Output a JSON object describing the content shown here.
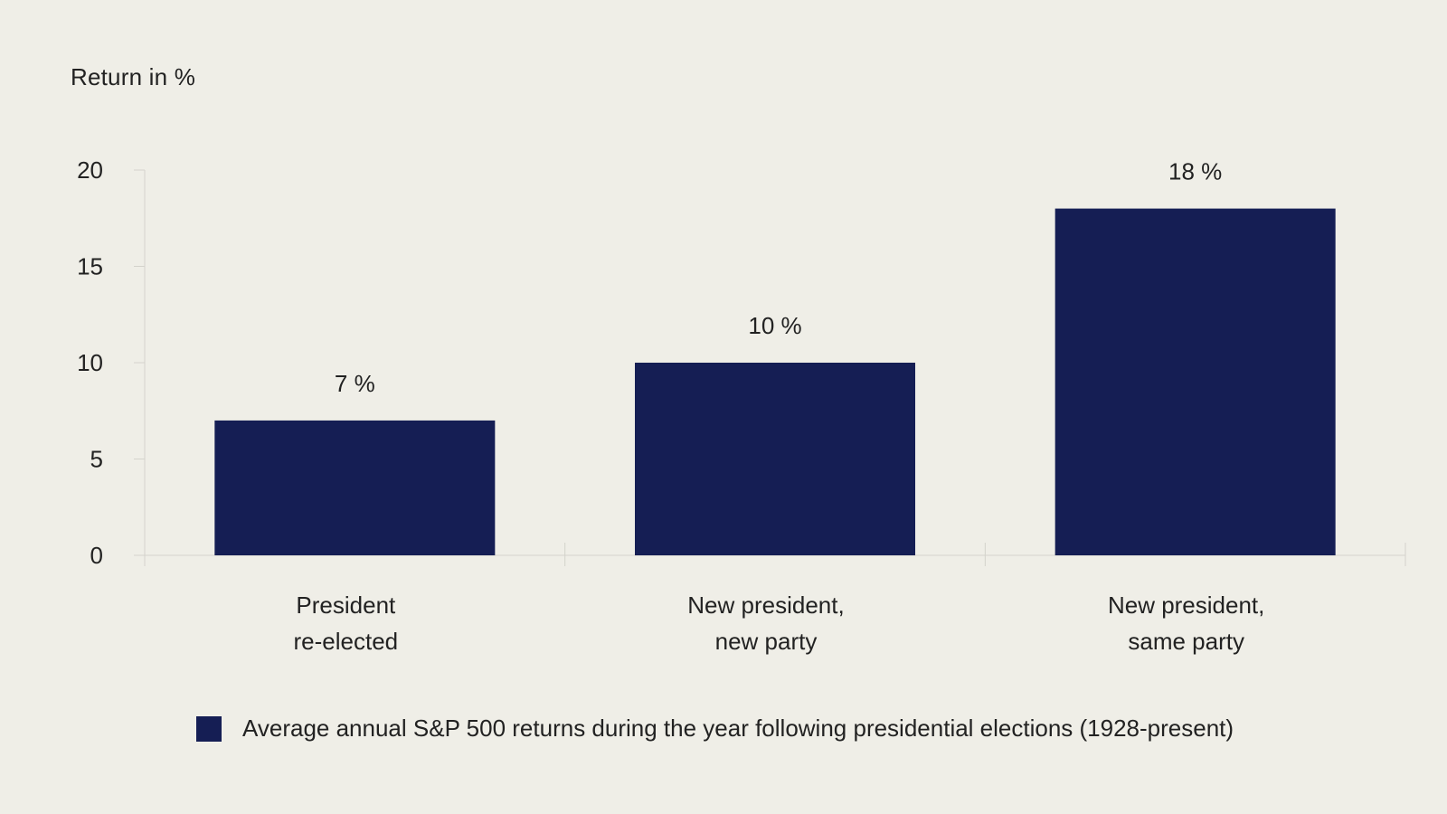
{
  "chart_data": {
    "type": "bar",
    "ylabel": "Return in %",
    "ylim": [
      0,
      20
    ],
    "yticks": [
      0,
      5,
      10,
      15,
      20
    ],
    "categories": [
      [
        "President",
        "re-elected"
      ],
      [
        "New president,",
        "new party"
      ],
      [
        "New president,",
        "same party"
      ]
    ],
    "series": [
      {
        "name": "Average annual S&P 500 returns during the year following presidential elections (1928-present)",
        "values": [
          7,
          10,
          18
        ],
        "labels": [
          "7 %",
          "10 %",
          "18 %"
        ],
        "color": "#151e54"
      }
    ],
    "grid": false,
    "legend_position": "bottom"
  }
}
